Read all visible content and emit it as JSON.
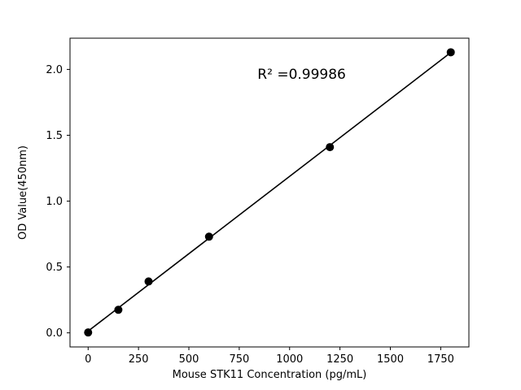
{
  "chart_data": {
    "type": "scatter",
    "title": "",
    "xlabel": "Mouse STK11 Concentration (pg/mL)",
    "ylabel": "OD Value(450nm)",
    "x": [
      0,
      150,
      300,
      600,
      1200,
      1800
    ],
    "y": [
      0.003,
      0.175,
      0.39,
      0.73,
      1.41,
      2.13
    ],
    "xticks": [
      0,
      250,
      500,
      750,
      1000,
      1250,
      1500,
      1750
    ],
    "yticks": [
      0.0,
      0.5,
      1.0,
      1.5,
      2.0
    ],
    "xlim": [
      -90,
      1890
    ],
    "ylim": [
      -0.107,
      2.237
    ],
    "grid": false,
    "legend": "none",
    "annotation": {
      "text": "R² =0.99986",
      "x": 1060,
      "y": 1.93
    },
    "line_fit": "linear",
    "marker_color": "#000000",
    "line_color": "#000000",
    "axis_color": "#000000",
    "background": "#ffffff"
  }
}
